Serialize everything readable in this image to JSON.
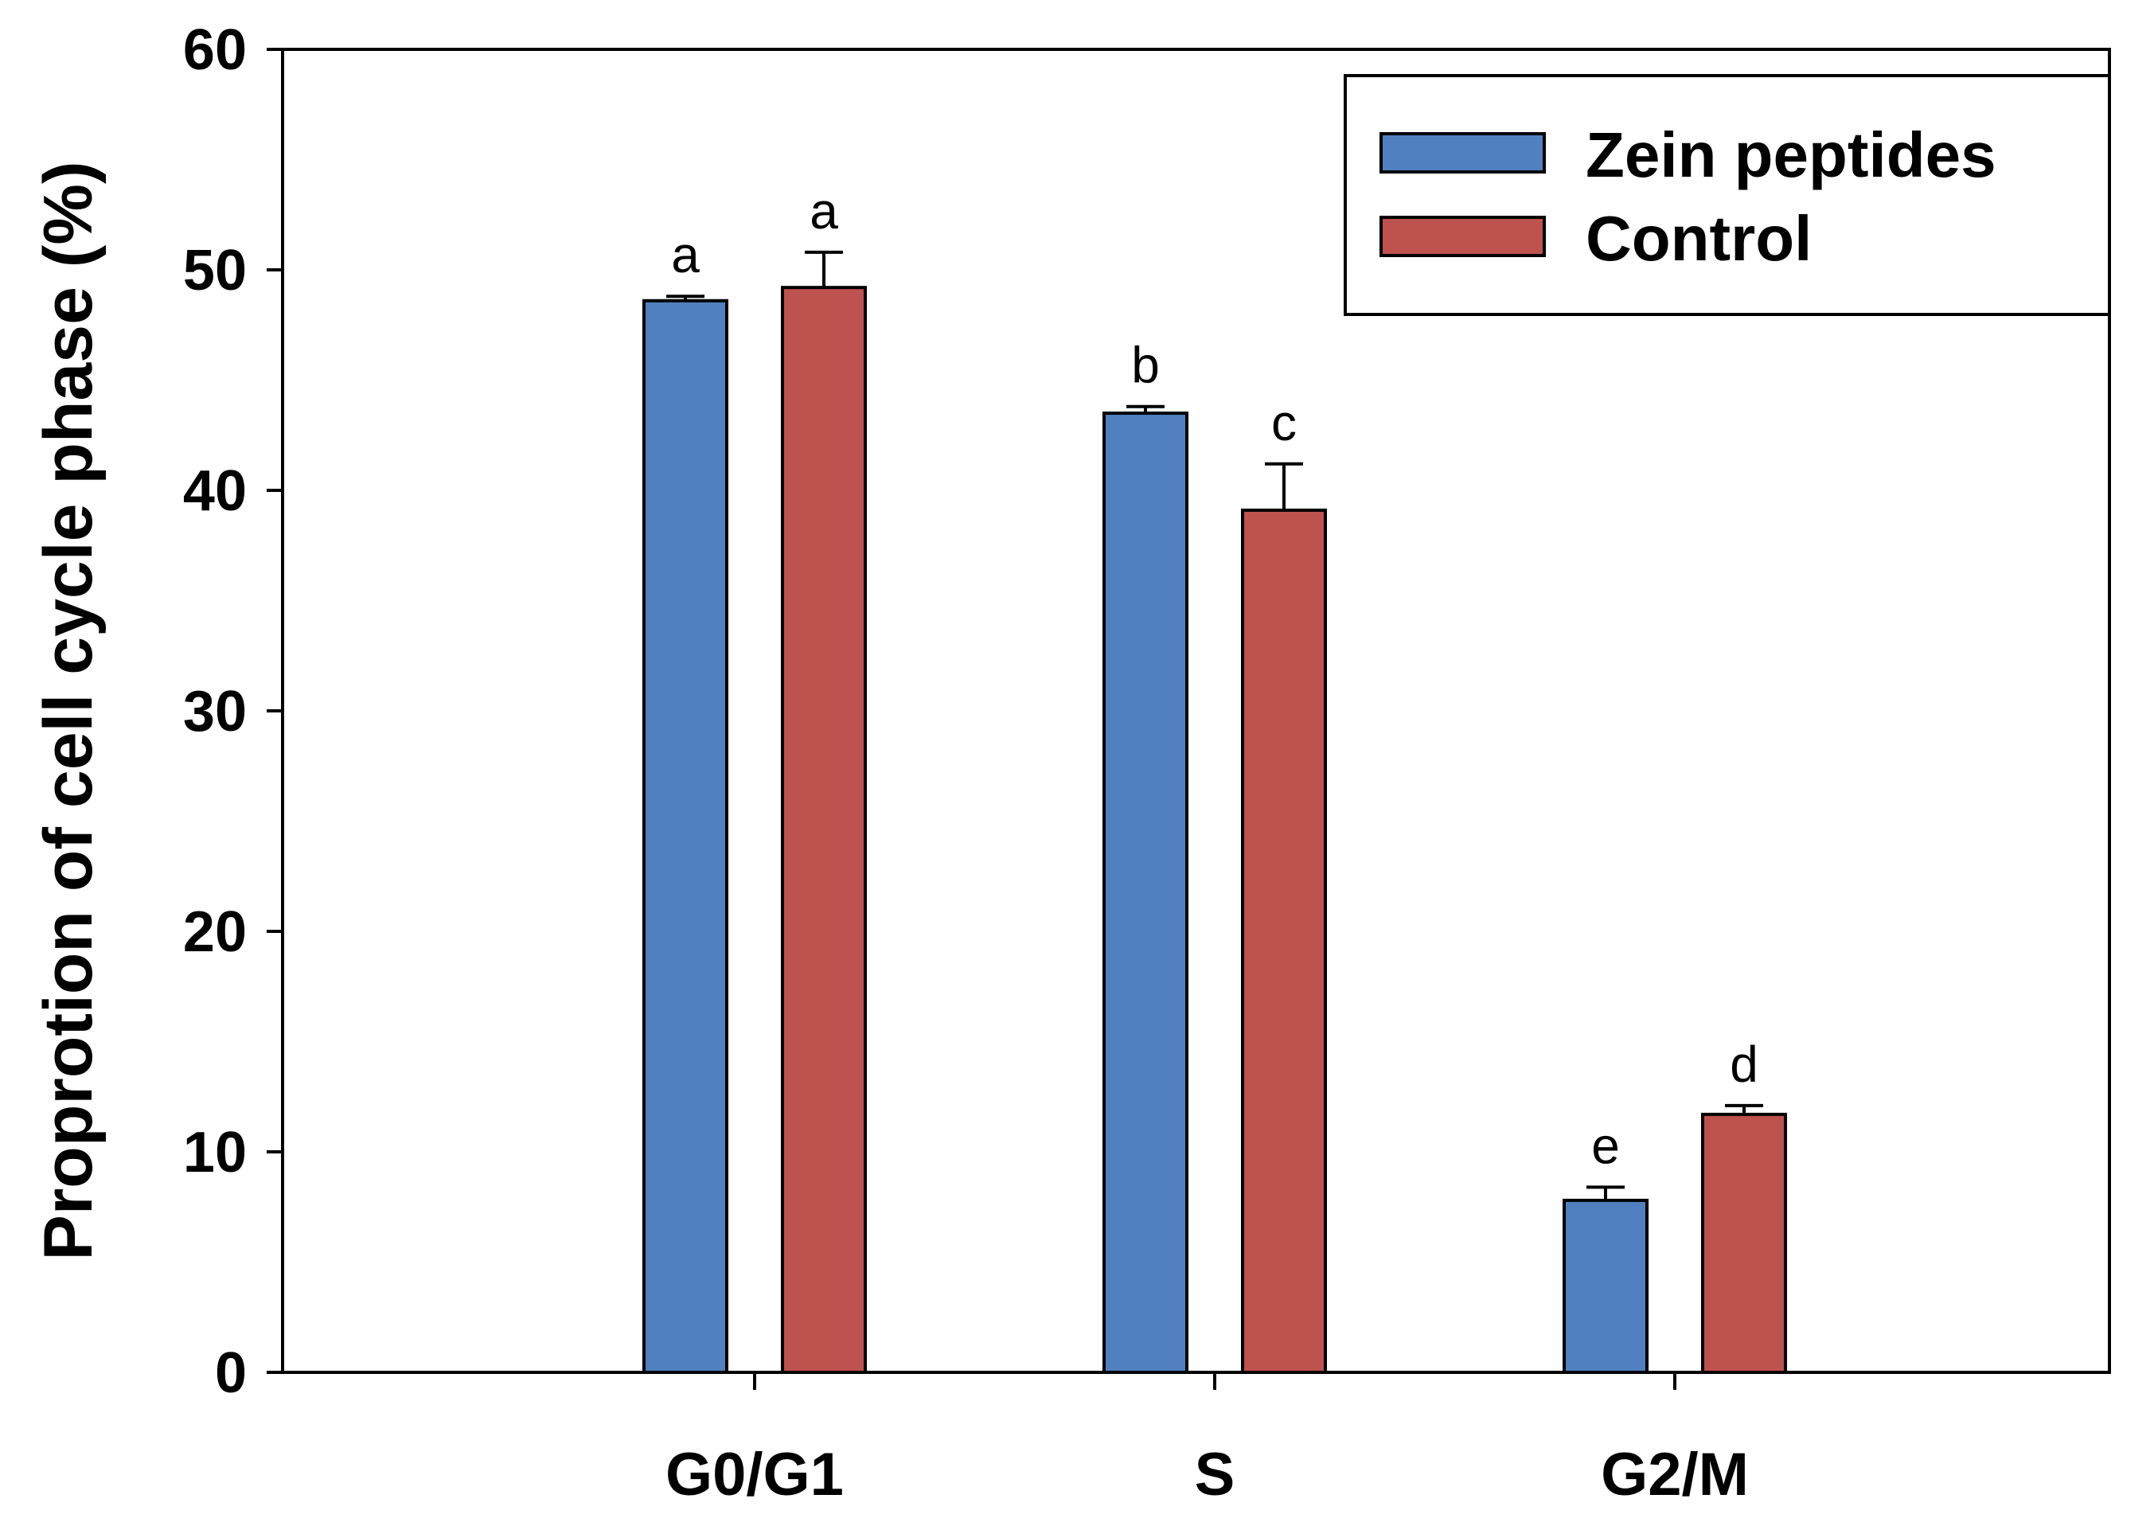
{
  "chart_data": {
    "type": "bar",
    "title": "",
    "xlabel": "",
    "ylabel": "Proprotion of cell cycle phase (%)",
    "ylim": [
      0,
      60
    ],
    "yticks": [
      0,
      10,
      20,
      30,
      40,
      50,
      60
    ],
    "categories": [
      "G0/G1",
      "S",
      "G2/M"
    ],
    "series": [
      {
        "name": "Zein peptides",
        "color": "#5080BF",
        "values": [
          48.6,
          43.5,
          7.8
        ],
        "errors": [
          0.2,
          0.3,
          0.6
        ],
        "labels": [
          "a",
          "b",
          "e"
        ]
      },
      {
        "name": "Control",
        "color": "#BE524E",
        "values": [
          49.2,
          39.1,
          11.7
        ],
        "errors": [
          1.6,
          2.1,
          0.4
        ],
        "labels": [
          "a",
          "c",
          "d"
        ]
      }
    ],
    "legend_position": "top-right"
  }
}
